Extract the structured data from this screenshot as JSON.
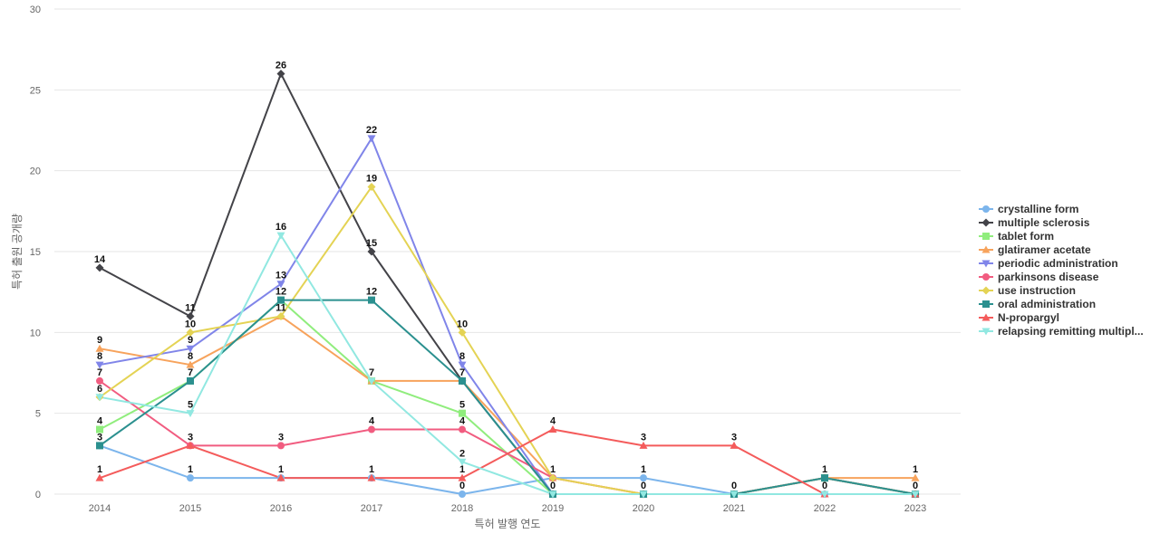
{
  "chart_data": {
    "type": "line",
    "title": "",
    "xlabel": "특허 발행 연도",
    "ylabel": "특허 출원 공개량",
    "categories": [
      "2014",
      "2015",
      "2016",
      "2017",
      "2018",
      "2019",
      "2020",
      "2021",
      "2022",
      "2023"
    ],
    "ylim": [
      0,
      30
    ],
    "yticks": [
      0,
      5,
      10,
      15,
      20,
      25,
      30
    ],
    "grid": true,
    "legend_position": "right",
    "series": [
      {
        "name": "crystalline form",
        "color": "#7cb5ec",
        "marker": "circle",
        "values": [
          3,
          1,
          1,
          1,
          0,
          1,
          1,
          0,
          0,
          0
        ]
      },
      {
        "name": "multiple sclerosis",
        "color": "#434348",
        "marker": "diamond",
        "values": [
          14,
          11,
          26,
          15,
          7,
          0,
          0,
          0,
          1,
          0
        ]
      },
      {
        "name": "tablet form",
        "color": "#90ed7d",
        "marker": "square",
        "values": [
          4,
          7,
          12,
          7,
          5,
          0,
          0,
          0,
          1,
          0
        ]
      },
      {
        "name": "glatiramer acetate",
        "color": "#f7a35c",
        "marker": "triangle",
        "values": [
          9,
          8,
          11,
          7,
          7,
          1,
          0,
          0,
          1,
          1
        ]
      },
      {
        "name": "periodic administration",
        "color": "#8085e9",
        "marker": "triangle-down",
        "values": [
          8,
          9,
          13,
          22,
          8,
          0,
          0,
          0,
          1,
          0
        ]
      },
      {
        "name": "parkinsons disease",
        "color": "#f15c80",
        "marker": "circle",
        "values": [
          7,
          3,
          3,
          4,
          4,
          1,
          0,
          0,
          1,
          0
        ]
      },
      {
        "name": "use instruction",
        "color": "#e4d354",
        "marker": "diamond",
        "values": [
          6,
          10,
          11,
          19,
          10,
          1,
          0,
          0,
          1,
          0
        ]
      },
      {
        "name": "oral administration",
        "color": "#2b908f",
        "marker": "square",
        "values": [
          3,
          7,
          12,
          12,
          7,
          0,
          0,
          0,
          1,
          0
        ]
      },
      {
        "name": "N-propargyl",
        "color": "#f45b5b",
        "marker": "triangle",
        "values": [
          1,
          3,
          1,
          1,
          1,
          4,
          3,
          3,
          0,
          0
        ]
      },
      {
        "name": "relapsing remitting multipl...",
        "color": "#91e8e1",
        "marker": "triangle-down",
        "values": [
          6,
          5,
          16,
          7,
          2,
          0,
          0,
          0,
          0,
          0
        ]
      }
    ],
    "data_labels": [
      {
        "category": "2014",
        "text": "14",
        "value": 14
      },
      {
        "category": "2014",
        "text": "9",
        "value": 9
      },
      {
        "category": "2014",
        "text": "8",
        "value": 8
      },
      {
        "category": "2014",
        "text": "7",
        "value": 7
      },
      {
        "category": "2014",
        "text": "6",
        "value": 6
      },
      {
        "category": "2014",
        "text": "4",
        "value": 4
      },
      {
        "category": "2014",
        "text": "3",
        "value": 3
      },
      {
        "category": "2014",
        "text": "1",
        "value": 1
      },
      {
        "category": "2015",
        "text": "11",
        "value": 11
      },
      {
        "category": "2015",
        "text": "10",
        "value": 10
      },
      {
        "category": "2015",
        "text": "9",
        "value": 9
      },
      {
        "category": "2015",
        "text": "8",
        "value": 8
      },
      {
        "category": "2015",
        "text": "7",
        "value": 7
      },
      {
        "category": "2015",
        "text": "5",
        "value": 5
      },
      {
        "category": "2015",
        "text": "3",
        "value": 3
      },
      {
        "category": "2015",
        "text": "1",
        "value": 1
      },
      {
        "category": "2016",
        "text": "26",
        "value": 26
      },
      {
        "category": "2016",
        "text": "16",
        "value": 16
      },
      {
        "category": "2016",
        "text": "13",
        "value": 13
      },
      {
        "category": "2016",
        "text": "12",
        "value": 12
      },
      {
        "category": "2016",
        "text": "11",
        "value": 11
      },
      {
        "category": "2016",
        "text": "3",
        "value": 3
      },
      {
        "category": "2016",
        "text": "1",
        "value": 1
      },
      {
        "category": "2017",
        "text": "22",
        "value": 22
      },
      {
        "category": "2017",
        "text": "19",
        "value": 19
      },
      {
        "category": "2017",
        "text": "15",
        "value": 15
      },
      {
        "category": "2017",
        "text": "12",
        "value": 12
      },
      {
        "category": "2017",
        "text": "7",
        "value": 7
      },
      {
        "category": "2017",
        "text": "4",
        "value": 4
      },
      {
        "category": "2017",
        "text": "1",
        "value": 1
      },
      {
        "category": "2018",
        "text": "10",
        "value": 10
      },
      {
        "category": "2018",
        "text": "8",
        "value": 8
      },
      {
        "category": "2018",
        "text": "7",
        "value": 7
      },
      {
        "category": "2018",
        "text": "5",
        "value": 5
      },
      {
        "category": "2018",
        "text": "4",
        "value": 4
      },
      {
        "category": "2018",
        "text": "2",
        "value": 2
      },
      {
        "category": "2018",
        "text": "1",
        "value": 1
      },
      {
        "category": "2018",
        "text": "0",
        "value": 0
      },
      {
        "category": "2019",
        "text": "4",
        "value": 4
      },
      {
        "category": "2019",
        "text": "1",
        "value": 1
      },
      {
        "category": "2019",
        "text": "0",
        "value": 0
      },
      {
        "category": "2020",
        "text": "3",
        "value": 3
      },
      {
        "category": "2020",
        "text": "1",
        "value": 1
      },
      {
        "category": "2020",
        "text": "0",
        "value": 0
      },
      {
        "category": "2021",
        "text": "3",
        "value": 3
      },
      {
        "category": "2021",
        "text": "0",
        "value": 0
      },
      {
        "category": "2022",
        "text": "1",
        "value": 1
      },
      {
        "category": "2022",
        "text": "0",
        "value": 0
      },
      {
        "category": "2023",
        "text": "1",
        "value": 1
      },
      {
        "category": "2023",
        "text": "0",
        "value": 0
      }
    ]
  }
}
